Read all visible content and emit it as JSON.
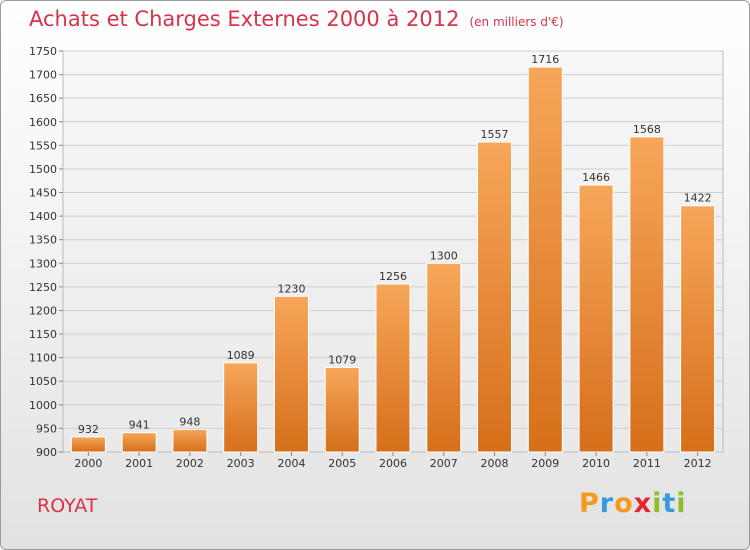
{
  "header": {
    "title": "Achats et Charges Externes 2000 à 2012",
    "subtitle": "(en milliers d'€)"
  },
  "footer": {
    "location": "ROYAT",
    "logo": "Proxiti"
  },
  "colors": {
    "accent": "#d8334a",
    "bar_top": "#f7a65a",
    "bar_bottom": "#d66f1a",
    "grid": "#cfcfcf",
    "logo_letters": [
      "#f39c1c",
      "#3a9ad9",
      "#f39c1c",
      "#e2272d",
      "#8cbf26",
      "#3a9ad9",
      "#8cbf26"
    ]
  },
  "chart_data": {
    "type": "bar",
    "title": "Achats et Charges Externes 2000 à 2012",
    "subtitle": "(en milliers d'€)",
    "xlabel": "",
    "ylabel": "",
    "categories": [
      "2000",
      "2001",
      "2002",
      "2003",
      "2004",
      "2005",
      "2006",
      "2007",
      "2008",
      "2009",
      "2010",
      "2011",
      "2012"
    ],
    "values": [
      932,
      941,
      948,
      1089,
      1230,
      1079,
      1256,
      1300,
      1557,
      1716,
      1466,
      1568,
      1422
    ],
    "ylim": [
      900,
      1750
    ],
    "yticks": [
      900,
      950,
      1000,
      1050,
      1100,
      1150,
      1200,
      1250,
      1300,
      1350,
      1400,
      1450,
      1500,
      1550,
      1600,
      1650,
      1700,
      1750
    ],
    "grid": true,
    "legend": "none"
  }
}
